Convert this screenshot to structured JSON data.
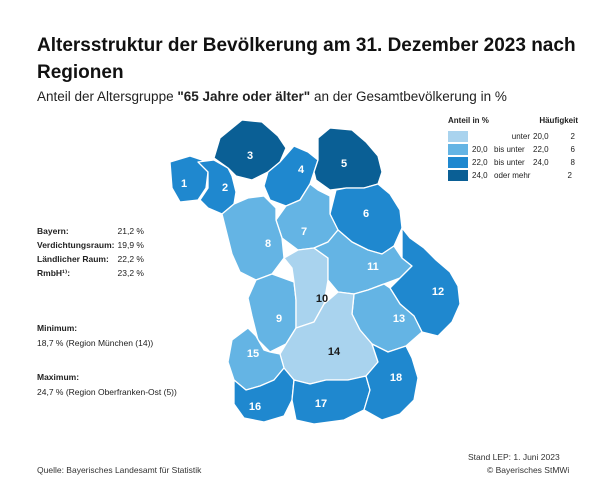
{
  "title": "Altersstruktur der Bevölkerung am 31. Dezember 2023 nach Regionen",
  "subtitle": {
    "before": "Anteil der Altersgruppe ",
    "bold": "\"65 Jahre oder älter\"",
    "after": " an der Gesamtbevölkerung in %"
  },
  "stats": [
    {
      "label": "Bayern:",
      "value": "21,2 %"
    },
    {
      "label": "Verdichtungsraum:",
      "value": "19,9 %"
    },
    {
      "label": "Ländlicher Raum:",
      "value": "22,2 %"
    },
    {
      "label": "RmbH¹⁾:",
      "value": "23,2 %"
    }
  ],
  "minimum": {
    "label": "Minimum:",
    "value": "18,7 %    (Region München (14))"
  },
  "maximum": {
    "label": "Maximum:",
    "value": "24,7 %    (Region Oberfranken-Ost (5))"
  },
  "legend": {
    "title": "Anteil in %",
    "freq_title": "Häufigkeit",
    "classes": [
      {
        "color": "#a9d3ee",
        "a": "",
        "b": "unter",
        "c": "20,0",
        "d": "",
        "count": "2"
      },
      {
        "color": "#64b4e4",
        "a": "20,0",
        "b": "bis unter",
        "c": "22,0",
        "d": "",
        "count": "6"
      },
      {
        "color": "#1f88cf",
        "a": "22,0",
        "b": "bis unter",
        "c": "24,0",
        "d": "",
        "count": "8"
      },
      {
        "color": "#0a5f95",
        "a": "24,0",
        "b": "oder mehr",
        "c": "",
        "d": "",
        "count": "2"
      }
    ]
  },
  "regions": [
    {
      "id": "1",
      "class": 2
    },
    {
      "id": "2",
      "class": 2
    },
    {
      "id": "3",
      "class": 3
    },
    {
      "id": "4",
      "class": 2
    },
    {
      "id": "5",
      "class": 3
    },
    {
      "id": "6",
      "class": 2
    },
    {
      "id": "7",
      "class": 1
    },
    {
      "id": "8",
      "class": 1
    },
    {
      "id": "9",
      "class": 1
    },
    {
      "id": "10",
      "class": 0
    },
    {
      "id": "11",
      "class": 1
    },
    {
      "id": "12",
      "class": 2
    },
    {
      "id": "13",
      "class": 1
    },
    {
      "id": "14",
      "class": 0
    },
    {
      "id": "15",
      "class": 1
    },
    {
      "id": "16",
      "class": 2
    },
    {
      "id": "17",
      "class": 2
    },
    {
      "id": "18",
      "class": 2
    }
  ],
  "stand": "Stand LEP: 1. Juni 2023",
  "source": "Quelle: Bayerisches Landesamt für Statistik",
  "copyright": "© Bayerisches StMWi"
}
